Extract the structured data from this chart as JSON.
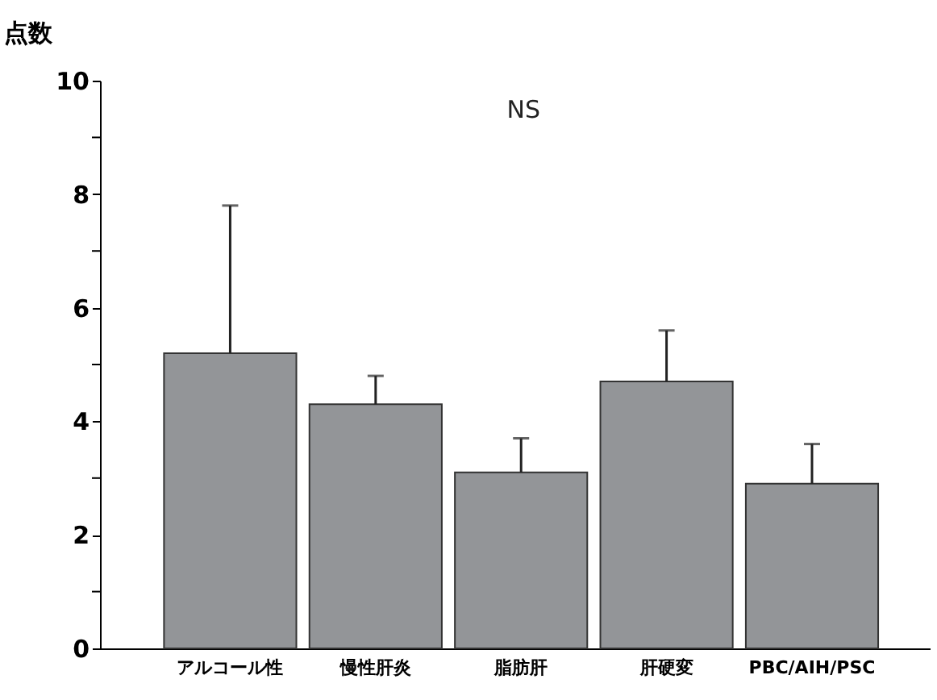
{
  "chart_data": {
    "type": "bar",
    "ylabel": "点数",
    "categories": [
      "アルコール性",
      "慢性肝炎",
      "脂肪肝",
      "肝硬変",
      "PBC/AIH/PSC"
    ],
    "values": [
      5.2,
      4.3,
      3.1,
      4.7,
      2.9
    ],
    "errors": [
      [
        5.2,
        7.8
      ],
      [
        4.3,
        4.8
      ],
      [
        3.1,
        3.7
      ],
      [
        4.7,
        5.6
      ],
      [
        2.9,
        3.6
      ]
    ],
    "color": "#939598",
    "ylim": [
      0,
      10
    ],
    "yticks": [
      0,
      {
        "value": 1,
        "label": null
      },
      2,
      {
        "value": 3,
        "label": null
      },
      4,
      {
        "value": 5,
        "label": null
      },
      6,
      {
        "value": 7,
        "label": null
      },
      8,
      {
        "value": 9,
        "label": null
      },
      10
    ],
    "annotations": [
      "NS"
    ],
    "grid": false
  }
}
